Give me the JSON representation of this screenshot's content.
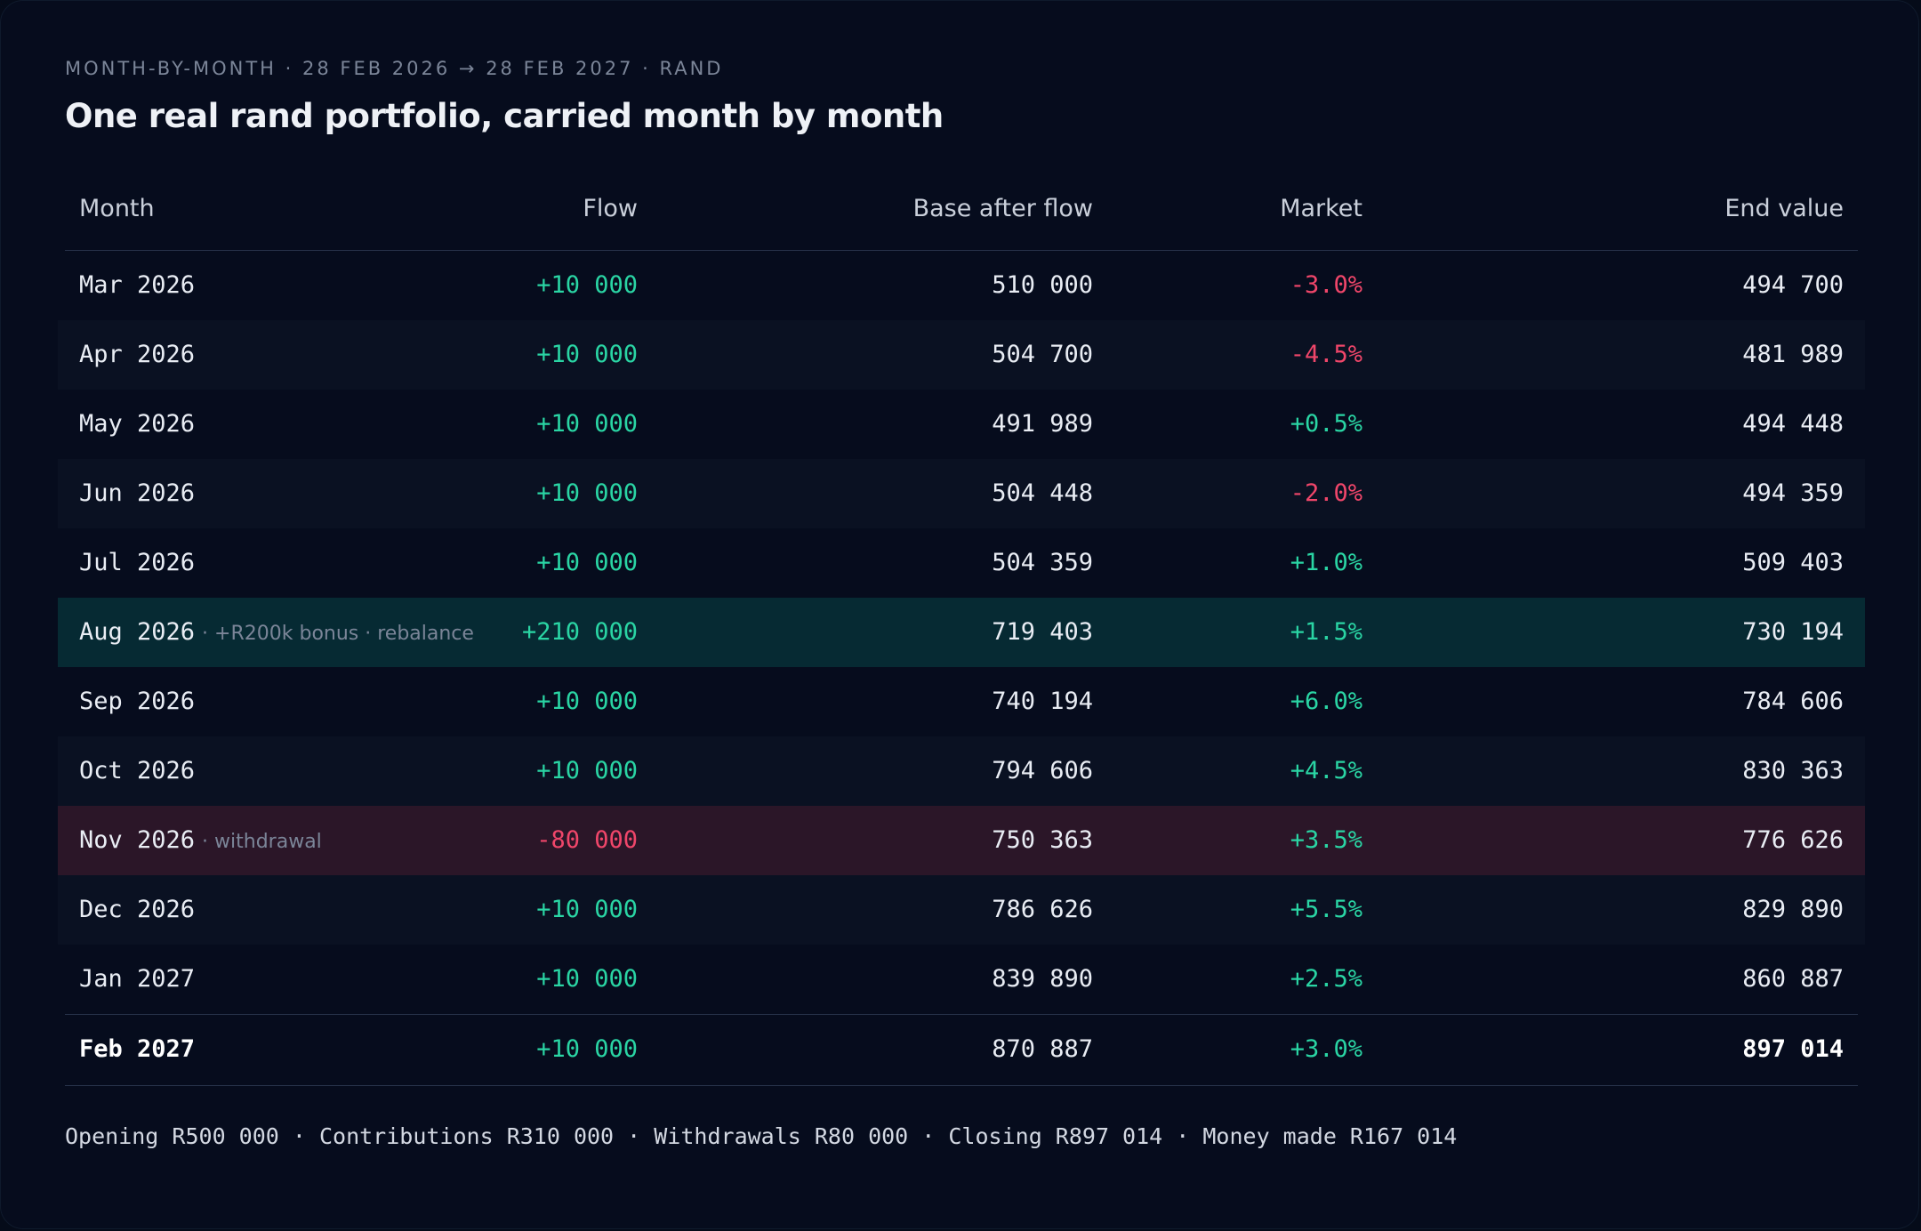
{
  "eyebrow": "MONTH-BY-MONTH · 28 FEB 2026 → 28 FEB 2027 · RAND",
  "title": "One real rand portfolio, carried month by month",
  "columns": {
    "month": "Month",
    "flow": "Flow",
    "base": "Base after flow",
    "market": "Market",
    "end": "End value"
  },
  "rows": [
    {
      "month": "Mar 2026",
      "note": "",
      "flow": "+10 000",
      "base": "510 000",
      "market": "-3.0%",
      "end": "494 700"
    },
    {
      "month": "Apr 2026",
      "note": "",
      "flow": "+10 000",
      "base": "504 700",
      "market": "-4.5%",
      "end": "481 989"
    },
    {
      "month": "May 2026",
      "note": "",
      "flow": "+10 000",
      "base": "491 989",
      "market": "+0.5%",
      "end": "494 448"
    },
    {
      "month": "Jun 2026",
      "note": "",
      "flow": "+10 000",
      "base": "504 448",
      "market": "-2.0%",
      "end": "494 359"
    },
    {
      "month": "Jul 2026",
      "note": "",
      "flow": "+10 000",
      "base": "504 359",
      "market": "+1.0%",
      "end": "509 403"
    },
    {
      "month": "Aug 2026",
      "note": "· +R200k bonus · rebalance",
      "flow": "+210 000",
      "base": "719 403",
      "market": "+1.5%",
      "end": "730 194"
    },
    {
      "month": "Sep 2026",
      "note": "",
      "flow": "+10 000",
      "base": "740 194",
      "market": "+6.0%",
      "end": "784 606"
    },
    {
      "month": "Oct 2026",
      "note": "",
      "flow": "+10 000",
      "base": "794 606",
      "market": "+4.5%",
      "end": "830 363"
    },
    {
      "month": "Nov 2026",
      "note": "· withdrawal",
      "flow": "-80 000",
      "base": "750 363",
      "market": "+3.5%",
      "end": "776 626"
    },
    {
      "month": "Dec 2026",
      "note": "",
      "flow": "+10 000",
      "base": "786 626",
      "market": "+5.5%",
      "end": "829 890"
    },
    {
      "month": "Jan 2027",
      "note": "",
      "flow": "+10 000",
      "base": "839 890",
      "market": "+2.5%",
      "end": "860 887"
    },
    {
      "month": "Feb 2027",
      "note": "",
      "flow": "+10 000",
      "base": "870 887",
      "market": "+3.0%",
      "end": "897 014"
    }
  ],
  "summary": "Opening R500 000 · Contributions R310 000 · Withdrawals R80 000 · Closing R897 014 · Money made R167 014",
  "colors": {
    "positive": "#2ad5a4",
    "negative": "#f0466a",
    "bonus_row": "#062a33",
    "withdrawal_row": "#2b1628",
    "background": "#060c1d"
  }
}
